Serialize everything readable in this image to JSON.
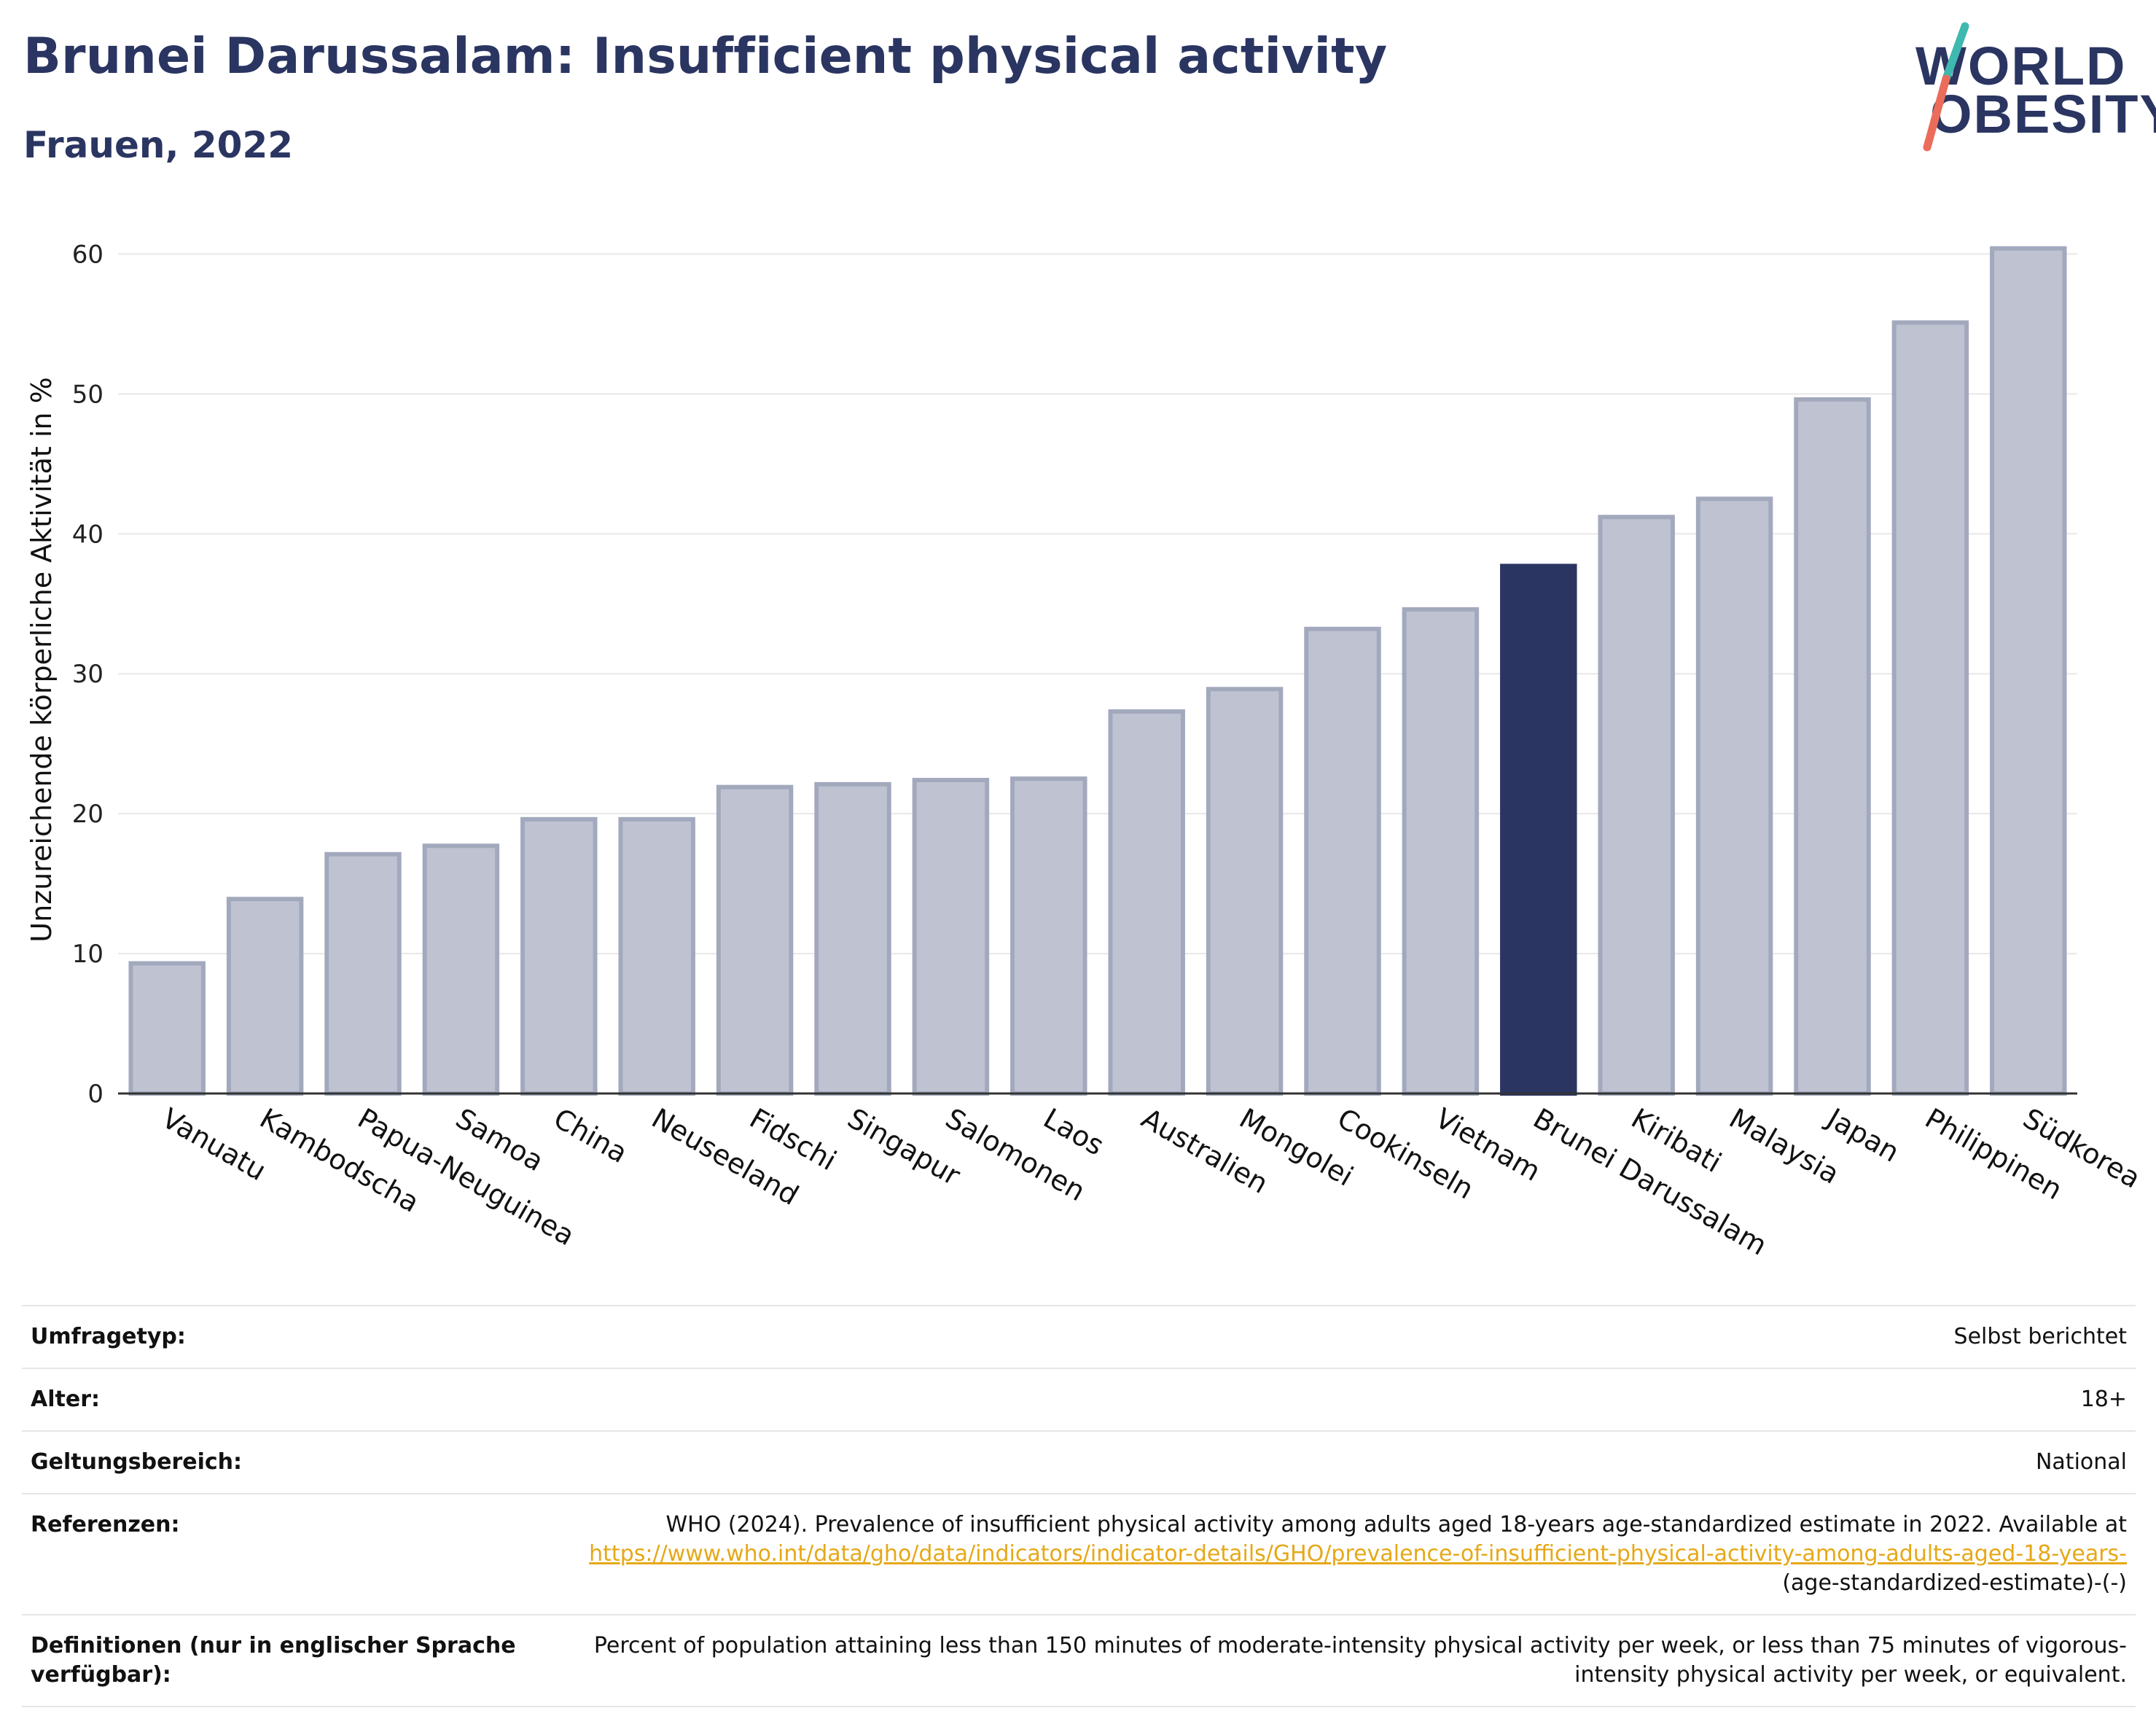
{
  "header": {
    "title": "Brunei Darussalam: Insufficient physical activity",
    "subtitle": "Frauen, 2022"
  },
  "logo": {
    "line1": "WORLD",
    "line2": "OBESITY"
  },
  "colors": {
    "highlight": "#2a3561",
    "bar": "#bfc3d1",
    "bar_edge": "#a3a9bd",
    "title": "#2a3561",
    "link": "#e6a817",
    "logo_teal": "#3fb8b0",
    "logo_coral": "#ec6c5b"
  },
  "chart_data": {
    "type": "bar",
    "categories": [
      "Vanuatu",
      "Kambodscha",
      "Papua-Neuguinea",
      "Samoa",
      "China",
      "Neuseeland",
      "Fidschi",
      "Singapur",
      "Salomonen",
      "Laos",
      "Australien",
      "Mongolei",
      "Cookinseln",
      "Vietnam",
      "Brunei Darussalam",
      "Kiribati",
      "Malaysia",
      "Japan",
      "Philippinen",
      "Südkorea"
    ],
    "values": [
      9.3,
      13.9,
      17.1,
      17.7,
      19.6,
      19.6,
      21.9,
      22.1,
      22.4,
      22.5,
      27.3,
      28.9,
      33.2,
      34.6,
      37.7,
      41.2,
      42.5,
      49.6,
      55.1,
      60.4
    ],
    "highlight": "Brunei Darussalam",
    "ylabel": "Unzureichende körperliche Aktivität in %",
    "xlabel": "",
    "ylim": [
      0,
      62
    ],
    "yticks": [
      0,
      10,
      20,
      30,
      40,
      50,
      60
    ],
    "grid": true
  },
  "meta": {
    "survey_label": "Umfragetyp:",
    "survey_value": "Selbst berichtet",
    "age_label": "Alter:",
    "age_value": "18+",
    "scope_label": "Geltungsbereich:",
    "scope_value": "National",
    "ref_label": "Referenzen:",
    "ref_text": "WHO (2024). Prevalence of insufficient physical activity among adults aged 18-years age-standardized estimate in 2022. Available at",
    "ref_link": "https://www.who.int/data/gho/data/indicators/indicator-details/GHO/prevalence-of-insufficient-physical-activity-among-adults-aged-18-years-",
    "ref_suffix": "(age-standardized-estimate)-(-)",
    "def_label": "Definitionen (nur in englischer Sprache verfügbar):",
    "def_value": "Percent of population attaining less than 150 minutes of moderate-intensity physical activity per week, or less than 75 minutes of vigorous-intensity physical activity per week, or equivalent."
  }
}
